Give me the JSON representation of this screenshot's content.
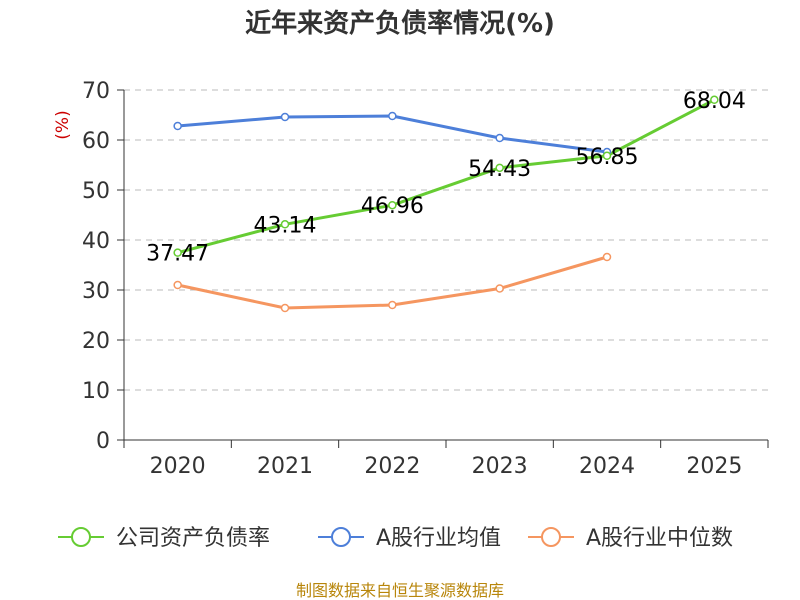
{
  "chart_data": {
    "type": "line",
    "title": "近年来资产负债率情况(%)",
    "ylabel": "(%)",
    "xlabel": "",
    "ylim": [
      0,
      70
    ],
    "yticks": [
      0,
      10,
      20,
      30,
      40,
      50,
      60,
      70
    ],
    "categories": [
      "2020",
      "2021",
      "2022",
      "2023",
      "2024",
      "2025"
    ],
    "grid": true,
    "legend_position": "bottom",
    "series": [
      {
        "name": "公司资产负债率",
        "color": "#66cc33",
        "values": [
          37.47,
          43.14,
          46.96,
          54.43,
          56.85,
          68.04
        ],
        "labels": [
          "37.47",
          "43.14",
          "46.96",
          "54.43",
          "56.85",
          "68.04"
        ]
      },
      {
        "name": "A股行业均值",
        "color": "#4d7fd9",
        "values": [
          62.8,
          64.6,
          64.8,
          60.4,
          57.6,
          null
        ]
      },
      {
        "name": "A股行业中位数",
        "color": "#f59660",
        "values": [
          31.0,
          26.4,
          27.0,
          30.3,
          36.6,
          null
        ]
      }
    ],
    "source": "制图数据来自恒生聚源数据库",
    "colors": {
      "ylabel": "#cc0000",
      "source": "#b8860b",
      "axis": "#333333",
      "grid": "#bbbbbb"
    }
  }
}
